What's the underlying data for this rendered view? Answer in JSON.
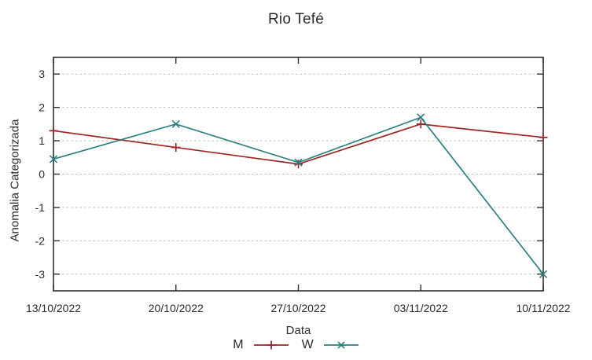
{
  "chart_data": {
    "type": "line",
    "title": "Rio Tefé",
    "xlabel": "Data",
    "ylabel": "Anomalia Categorizada",
    "categories": [
      "13/10/2022",
      "20/10/2022",
      "27/10/2022",
      "03/11/2022",
      "10/11/2022"
    ],
    "yticks": [
      -3,
      -2,
      -1,
      0,
      1,
      2,
      3
    ],
    "ylim": [
      -3.5,
      3.5
    ],
    "grid": "horizontal-dashed-ytics-only",
    "legend_position": "bottom-center-below-xlabel",
    "series": [
      {
        "name": "M",
        "marker": "plus",
        "color": "#a02424",
        "values": [
          1.3,
          0.8,
          0.3,
          1.5,
          1.1
        ]
      },
      {
        "name": "W",
        "marker": "cross",
        "color": "#2a7f7f",
        "values": [
          0.45,
          1.5,
          0.35,
          1.7,
          -3.0
        ]
      }
    ],
    "colors": {
      "grid": "#b5b5b5",
      "border": "#2e2e2e",
      "text": "#2b2b2b",
      "background": "#ffffff"
    }
  }
}
